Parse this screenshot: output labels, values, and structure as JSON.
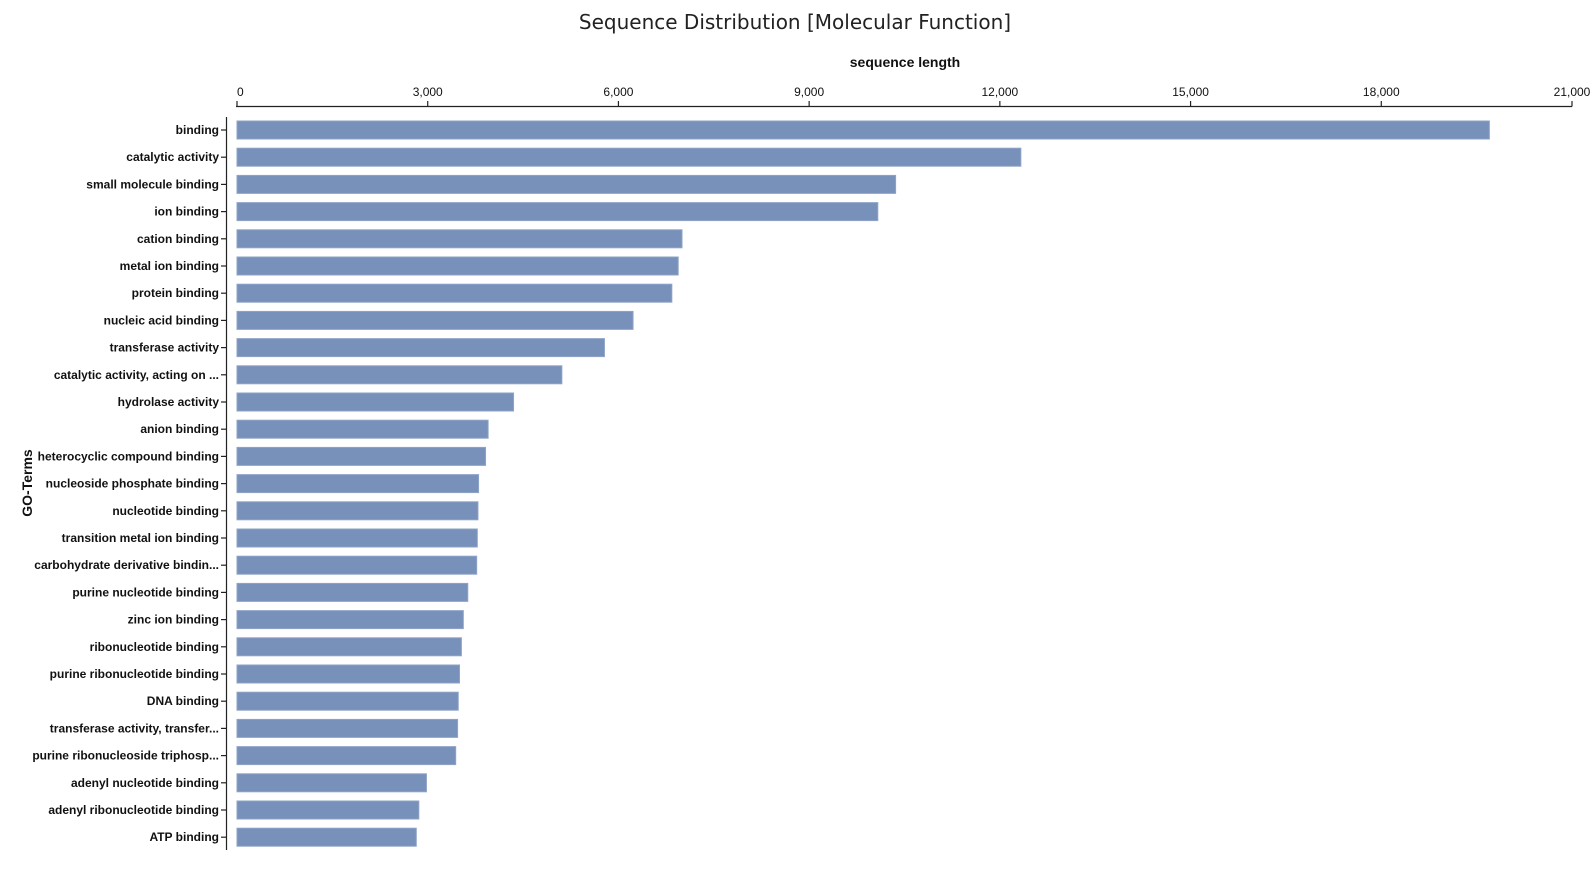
{
  "chart_data": {
    "type": "bar",
    "orientation": "horizontal",
    "title": "Sequence Distribution [Molecular Function]",
    "xlabel": "sequence length",
    "ylabel": "GO-Terms",
    "xlim": [
      0,
      21000
    ],
    "x_ticks": [
      "0",
      "3,000",
      "6,000",
      "9,000",
      "12,000",
      "15,000",
      "18,000",
      "21,000"
    ],
    "x_tick_values": [
      0,
      3000,
      6000,
      9000,
      12000,
      15000,
      18000,
      21000
    ],
    "x_axis_position": "top",
    "grid": false,
    "bar_color": "#7891bb",
    "categories": [
      "binding",
      "catalytic activity",
      "small molecule binding",
      "ion binding",
      "cation binding",
      "metal ion binding",
      "protein binding",
      "nucleic acid binding",
      "transferase activity",
      "catalytic activity, acting on ...",
      "hydrolase activity",
      "anion binding",
      "heterocyclic compound binding",
      "nucleoside phosphate binding",
      "nucleotide binding",
      "transition metal ion binding",
      "carbohydrate derivative bindin...",
      "purine nucleotide binding",
      "zinc ion binding",
      "ribonucleotide binding",
      "purine ribonucleotide binding",
      "DNA binding",
      "transferase activity, transfer...",
      "purine ribonucleoside triphosp...",
      "adenyl nucleotide binding",
      "adenyl ribonucleotide binding",
      "ATP binding"
    ],
    "values": [
      19700,
      12330,
      10360,
      10080,
      7000,
      6940,
      6840,
      6230,
      5780,
      5110,
      4350,
      3950,
      3910,
      3800,
      3790,
      3780,
      3770,
      3630,
      3560,
      3530,
      3500,
      3480,
      3470,
      3440,
      2980,
      2860,
      2820
    ]
  }
}
